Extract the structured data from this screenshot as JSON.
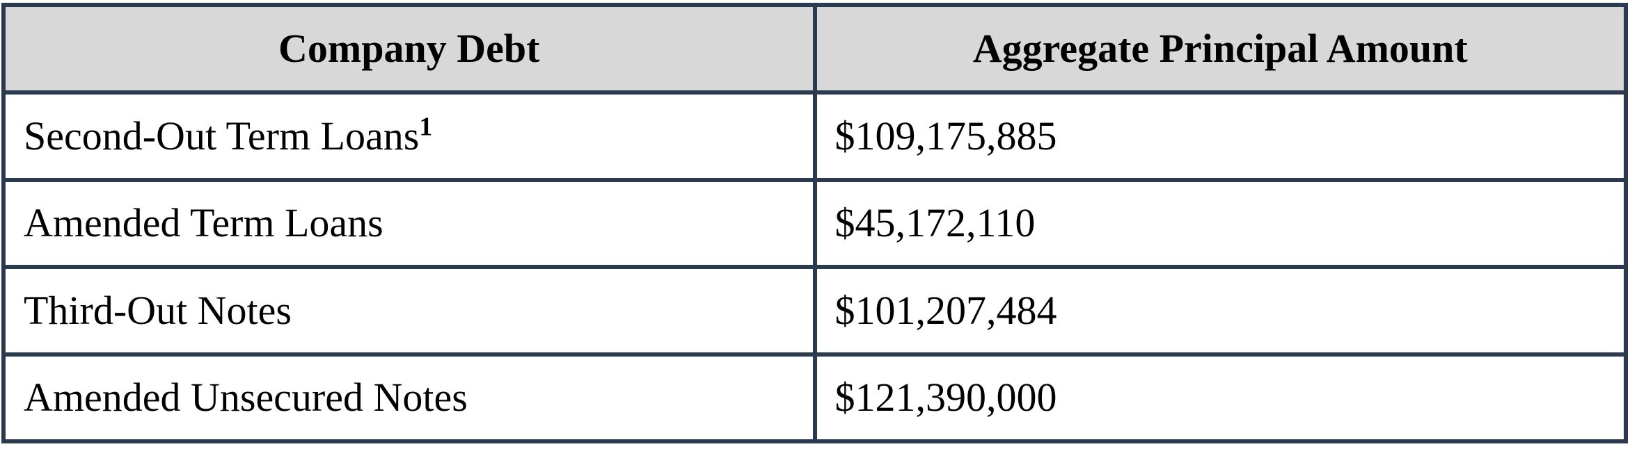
{
  "table": {
    "columns": [
      {
        "label": "Company Debt"
      },
      {
        "label": "Aggregate Principal Amount"
      }
    ],
    "rows": [
      {
        "debt": "Second-Out Term Loans",
        "footnote": "1",
        "amount": "$109,175,885"
      },
      {
        "debt": "Amended Term Loans",
        "footnote": "",
        "amount": "$45,172,110"
      },
      {
        "debt": "Third-Out Notes",
        "footnote": "",
        "amount": "$101,207,484"
      },
      {
        "debt": "Amended Unsecured Notes",
        "footnote": "",
        "amount": "$121,390,000"
      }
    ],
    "colors": {
      "border": "#2c3a4f",
      "header_background": "#d8d8d8",
      "row_background": "#ffffff",
      "text": "#000000"
    }
  }
}
